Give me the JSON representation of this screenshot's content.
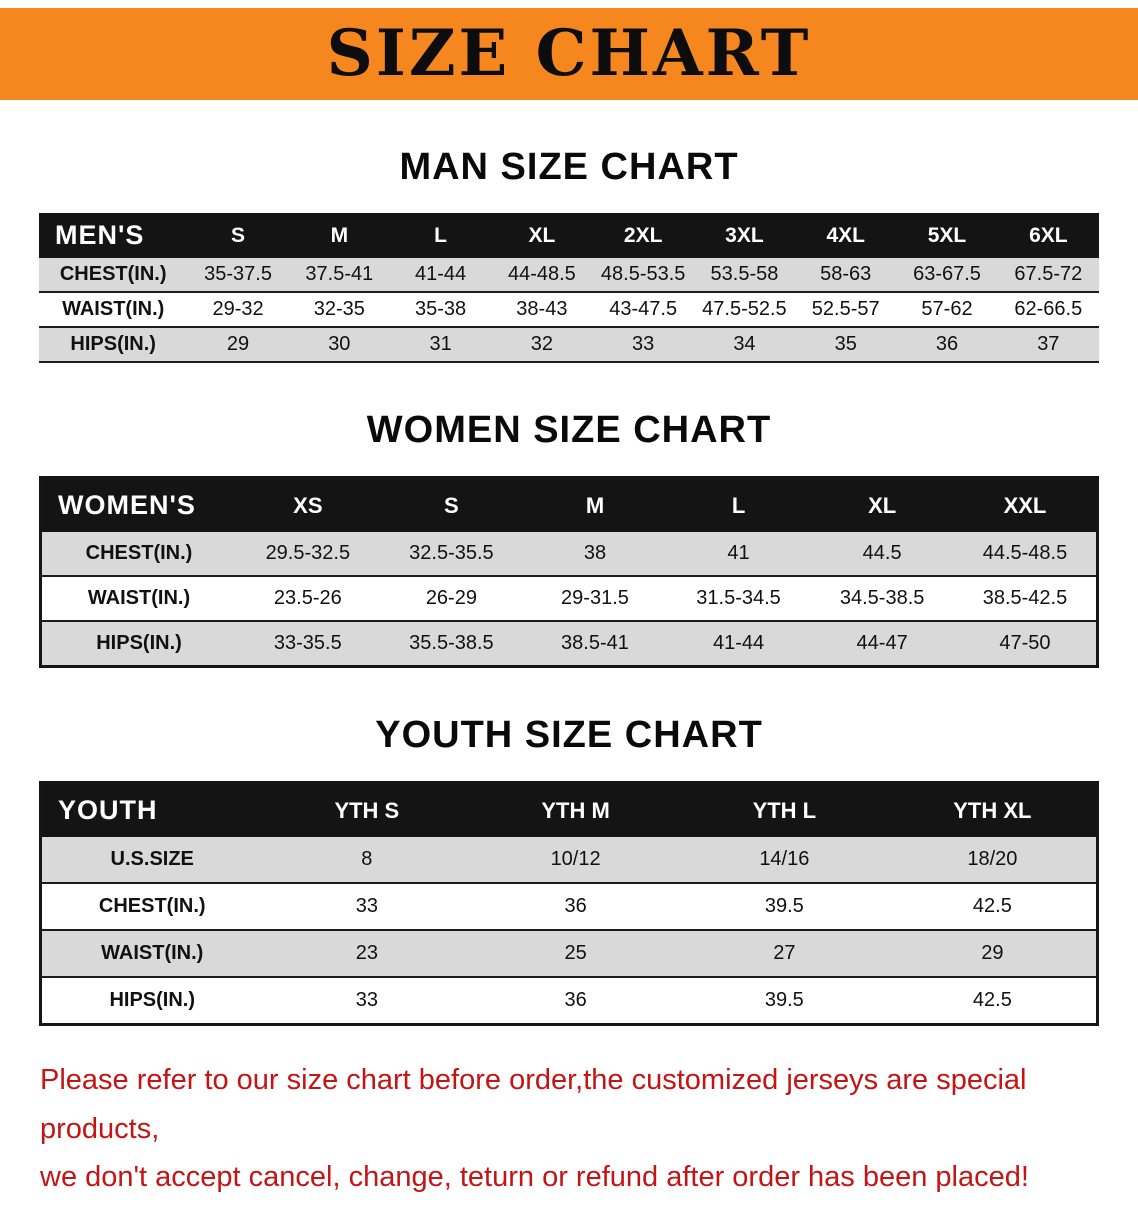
{
  "banner": {
    "title": "SIZE CHART"
  },
  "colors": {
    "banner_orange": "#f6871f",
    "header_black": "#141414",
    "row_gray": "#d9d9d9",
    "footer_red": "#c41414"
  },
  "sections": [
    {
      "heading": "MAN SIZE CHART",
      "table": {
        "header_label": "MEN'S",
        "columns": [
          "S",
          "M",
          "L",
          "XL",
          "2XL",
          "3XL",
          "4XL",
          "5XL",
          "6XL"
        ],
        "rows": [
          {
            "label": "CHEST(IN.)",
            "values": [
              "35-37.5",
              "37.5-41",
              "41-44",
              "44-48.5",
              "48.5-53.5",
              "53.5-58",
              "58-63",
              "63-67.5",
              "67.5-72"
            ]
          },
          {
            "label": "WAIST(IN.)",
            "values": [
              "29-32",
              "32-35",
              "35-38",
              "38-43",
              "43-47.5",
              "47.5-52.5",
              "52.5-57",
              "57-62",
              "62-66.5"
            ]
          },
          {
            "label": "HIPS(IN.)",
            "values": [
              "29",
              "30",
              "31",
              "32",
              "33",
              "34",
              "35",
              "36",
              "37"
            ]
          }
        ]
      }
    },
    {
      "heading": "WOMEN SIZE CHART",
      "table": {
        "header_label": "WOMEN'S",
        "columns": [
          "XS",
          "S",
          "M",
          "L",
          "XL",
          "XXL"
        ],
        "rows": [
          {
            "label": "CHEST(IN.)",
            "values": [
              "29.5-32.5",
              "32.5-35.5",
              "38",
              "41",
              "44.5",
              "44.5-48.5"
            ]
          },
          {
            "label": "WAIST(IN.)",
            "values": [
              "23.5-26",
              "26-29",
              "29-31.5",
              "31.5-34.5",
              "34.5-38.5",
              "38.5-42.5"
            ]
          },
          {
            "label": "HIPS(IN.)",
            "values": [
              "33-35.5",
              "35.5-38.5",
              "38.5-41",
              "41-44",
              "44-47",
              "47-50"
            ]
          }
        ]
      }
    },
    {
      "heading": "YOUTH SIZE CHART",
      "table": {
        "header_label": "YOUTH",
        "columns": [
          "YTH S",
          "YTH M",
          "YTH L",
          "YTH XL"
        ],
        "rows": [
          {
            "label": "U.S.SIZE",
            "values": [
              "8",
              "10/12",
              "14/16",
              "18/20"
            ]
          },
          {
            "label": "CHEST(IN.)",
            "values": [
              "33",
              "36",
              "39.5",
              "42.5"
            ]
          },
          {
            "label": "WAIST(IN.)",
            "values": [
              "23",
              "25",
              "27",
              "29"
            ]
          },
          {
            "label": "HIPS(IN.)",
            "values": [
              "33",
              "36",
              "39.5",
              "42.5"
            ]
          }
        ]
      }
    }
  ],
  "footer": {
    "lines": [
      "Please refer to our size chart before order,the customized jerseys are special products,",
      "we don't accept cancel, change, teturn or refund after order has been placed!"
    ]
  }
}
